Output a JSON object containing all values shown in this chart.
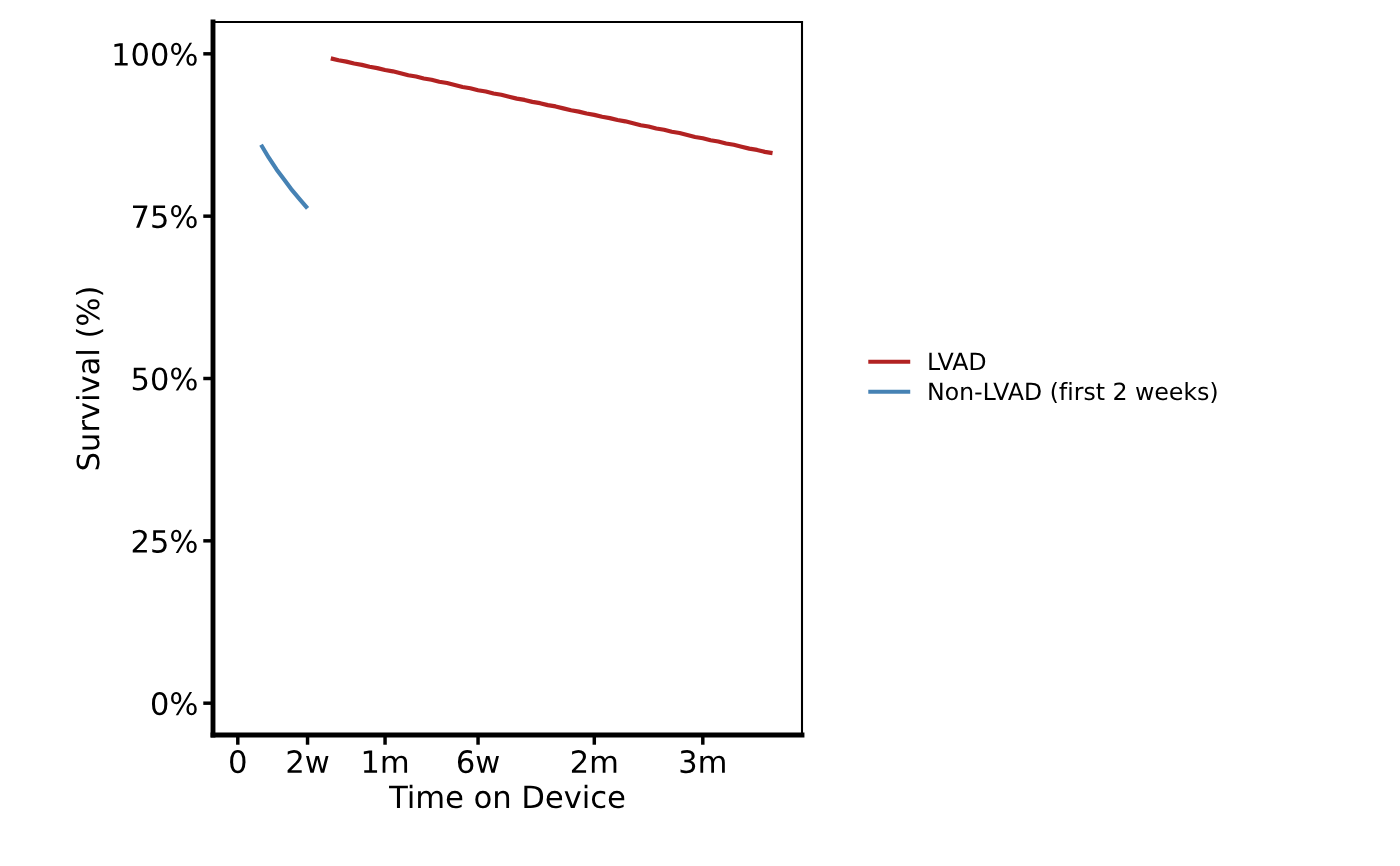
{
  "chart_data": {
    "type": "line",
    "xlabel": "Time on Device",
    "ylabel": "Survival (%)",
    "categories": [
      "0",
      null,
      null,
      null,
      null,
      null,
      null,
      null,
      null,
      "2w",
      null,
      null,
      null,
      null,
      null,
      null,
      null,
      null,
      null,
      "1m",
      null,
      null,
      null,
      null,
      null,
      null,
      null,
      null,
      null,
      null,
      null,
      "6w",
      null,
      null,
      null,
      null,
      null,
      null,
      null,
      null,
      null,
      null,
      null,
      null,
      null,
      null,
      "2m",
      null,
      null,
      null,
      null,
      null,
      null,
      null,
      null,
      null,
      null,
      null,
      null,
      null,
      "3m",
      null,
      null,
      null,
      null,
      null,
      null,
      null,
      null,
      null,
      null,
      null,
      null
    ],
    "ylim": [
      -4.9,
      104.9
    ],
    "yticks": [
      {
        "value": 0,
        "label": "0%"
      },
      {
        "value": 25,
        "label": "25%"
      },
      {
        "value": 50,
        "label": "50%"
      },
      {
        "value": 75,
        "label": "75%"
      },
      {
        "value": 100,
        "label": "100%"
      }
    ],
    "series": [
      {
        "name": "LVAD",
        "color": "#b22222",
        "values": [
          null,
          null,
          null,
          null,
          null,
          null,
          null,
          null,
          null,
          null,
          null,
          null,
          99.3,
          99.0,
          98.8,
          98.5,
          98.3,
          98.0,
          97.8,
          97.5,
          97.3,
          97.0,
          96.7,
          96.5,
          96.2,
          96.0,
          95.7,
          95.5,
          95.2,
          94.9,
          94.7,
          94.4,
          94.2,
          93.9,
          93.7,
          93.4,
          93.1,
          92.9,
          92.6,
          92.4,
          92.1,
          91.9,
          91.6,
          91.3,
          91.1,
          90.8,
          90.6,
          90.3,
          90.1,
          89.8,
          89.6,
          89.3,
          89.0,
          88.8,
          88.5,
          88.3,
          88.0,
          87.8,
          87.5,
          87.2,
          87.0,
          86.7,
          86.5,
          86.2,
          86.0,
          85.7,
          85.4,
          85.2,
          84.9,
          84.7,
          null,
          null,
          null
        ]
      },
      {
        "name": "Non-LVAD (first 2 weeks)",
        "color": "#4682b4",
        "values": [
          null,
          null,
          null,
          86.0,
          84.0,
          82.2,
          80.6,
          79.0,
          77.6,
          76.2,
          null,
          null,
          null,
          null,
          null,
          null,
          null,
          null,
          null,
          null,
          null,
          null,
          null,
          null,
          null,
          null,
          null,
          null,
          null,
          null,
          null,
          null,
          null,
          null,
          null,
          null,
          null,
          null,
          null,
          null,
          null,
          null,
          null,
          null,
          null,
          null,
          null,
          null,
          null,
          null,
          null,
          null,
          null,
          null,
          null,
          null,
          null,
          null,
          null,
          null,
          null,
          null,
          null,
          null,
          null,
          null,
          null,
          null,
          null,
          null,
          null,
          null,
          null
        ]
      }
    ],
    "legend": "right",
    "grid": false
  }
}
